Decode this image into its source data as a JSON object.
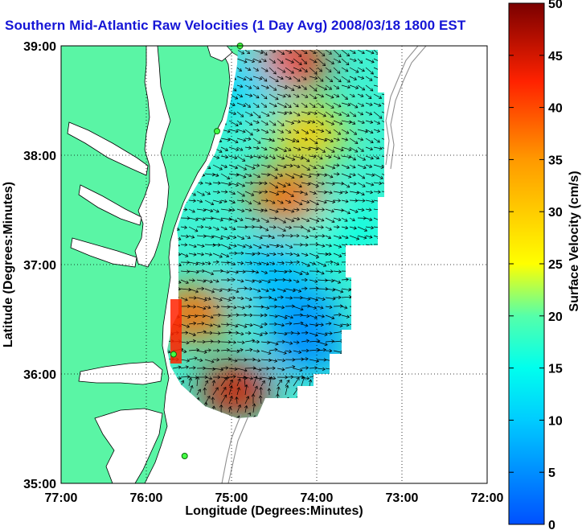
{
  "title": "Southern Mid-Atlantic Raw Velocities (1 Day Avg) 2008/03/18 1800 EST",
  "chart_data": {
    "type": "heatmap",
    "title": "Southern Mid-Atlantic Raw Velocities (1 Day Avg) 2008/03/18 1800 EST",
    "xlabel": "Longitude (Degrees:Minutes)",
    "ylabel": "Latitude (Degrees:Minutes)",
    "xlim": [
      -77,
      -72
    ],
    "ylim": [
      35,
      39
    ],
    "x_tick_labels": [
      "77:00",
      "76:00",
      "75:00",
      "74:00",
      "73:00",
      "72:00"
    ],
    "y_tick_labels": [
      "35:00",
      "36:00",
      "37:00",
      "38:00",
      "39:00"
    ],
    "grid": "dotted",
    "colorbar": {
      "label": "Surface Velocity (cm/s)",
      "range": [
        0,
        50
      ],
      "ticks": [
        "0",
        "5",
        "10",
        "15",
        "20",
        "25",
        "30",
        "35",
        "40",
        "45",
        "50"
      ]
    },
    "overlay": "current velocity vectors (arrows)",
    "hotspots": [
      {
        "lon": -74.35,
        "lat": 37.62,
        "speed": 38
      },
      {
        "lon": -74.3,
        "lat": 38.85,
        "speed": 42
      },
      {
        "lon": -74.95,
        "lat": 35.85,
        "speed": 45
      },
      {
        "lon": -75.45,
        "lat": 36.55,
        "speed": 38
      },
      {
        "lon": -74.1,
        "lat": 38.2,
        "speed": 30
      }
    ],
    "lowspots": [
      {
        "lon": -74.2,
        "lat": 36.6,
        "speed": 6
      },
      {
        "lon": -74.1,
        "lat": 36.25,
        "speed": 5
      },
      {
        "lon": -74.55,
        "lat": 36.95,
        "speed": 9
      },
      {
        "lon": -74.9,
        "lat": 38.65,
        "speed": 11
      },
      {
        "lon": -73.6,
        "lat": 37.3,
        "speed": 16
      }
    ],
    "stations": [
      {
        "lon": -74.9,
        "lat": 39.0
      },
      {
        "lon": -75.17,
        "lat": 38.22
      },
      {
        "lon": -75.68,
        "lat": 36.18
      },
      {
        "lon": -75.55,
        "lat": 35.25
      }
    ]
  },
  "colors": {
    "land": "#5af5a5",
    "title": "#1515d6",
    "station": "#44ff44"
  }
}
